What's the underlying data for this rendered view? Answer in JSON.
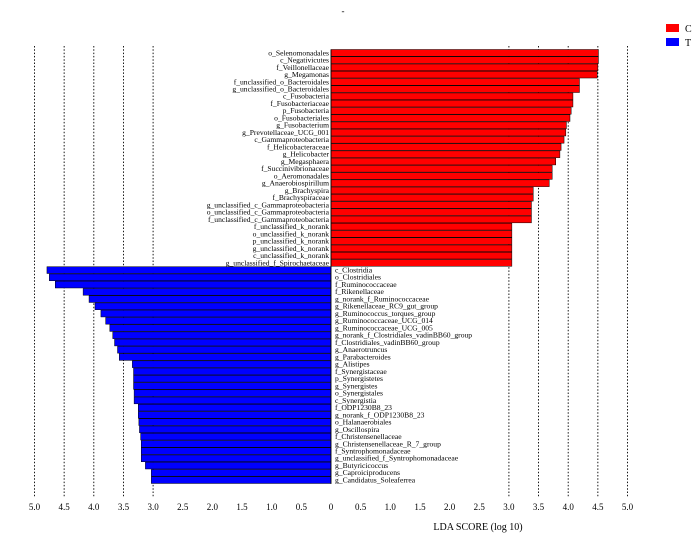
{
  "chart_data": {
    "type": "bar",
    "orientation": "horizontal-diverging",
    "title": "-",
    "xlabel": "LDA SCORE (log 10)",
    "xlim": [
      -5.0,
      5.0
    ],
    "xticks": [
      5.0,
      4.5,
      4.0,
      3.5,
      3.0,
      2.5,
      2.0,
      1.5,
      1.0,
      0.5,
      0.0,
      0.5,
      1.0,
      1.5,
      2.0,
      2.5,
      3.0,
      3.5,
      4.0,
      4.5,
      5.0
    ],
    "xtick_labels": [
      "5.0",
      "4.5",
      "4.0",
      "3.5",
      "3.0",
      "2.5",
      "2.0",
      "1.5",
      "1.0",
      "0.5",
      "0",
      "0.5",
      "1.0",
      "1.5",
      "2.0",
      "2.5",
      "3.0",
      "3.5",
      "4.0",
      "4.5",
      "5.0"
    ],
    "legend": {
      "placement": "top-right",
      "entries": [
        {
          "label": "C",
          "color": "#ff0000"
        },
        {
          "label": "T",
          "color": "#0000ff"
        }
      ]
    },
    "series": [
      {
        "name": "C",
        "color": "#ff0000",
        "direction": "right",
        "categories": [
          "o_Selenomonadales",
          "c_Negativicutes",
          "f_Veillonellaceae",
          "g_Megamonas",
          "f_unclassified_o_Bacteroidales",
          "g_unclassified_o_Bacteroidales",
          "c_Fusobacteria",
          "f_Fusobacteriaceae",
          "p_Fusobacteria",
          "o_Fusobacteriales",
          "g_Fusobacterium",
          "g_Prevotellaceae_UCG_001",
          "c_Gammaproteobacteria",
          "f_Helicobacteraceae",
          "g_Helicobacter",
          "g_Megasphaera",
          "f_Succinivibrionaceae",
          "o_Aeromonadales",
          "g_Anaerobiospirillum",
          "g_Brachyspira",
          "f_Brachyspiraceae",
          "g_unclassified_c_Gammaproteobacteria",
          "o_unclassified_c_Gammaproteobacteria",
          "f_unclassified_c_Gammaproteobacteria",
          "f_unclassified_k_norank",
          "o_unclassified_k_norank",
          "p_unclassified_k_norank",
          "g_unclassified_k_norank",
          "c_unclassified_k_norank",
          "g_unclassified_f_Spirochaetaceae"
        ],
        "values": [
          4.51,
          4.51,
          4.5,
          4.49,
          4.19,
          4.19,
          4.08,
          4.08,
          4.05,
          4.03,
          3.97,
          3.96,
          3.93,
          3.88,
          3.86,
          3.79,
          3.73,
          3.73,
          3.68,
          3.41,
          3.41,
          3.38,
          3.38,
          3.38,
          3.05,
          3.05,
          3.05,
          3.05,
          3.05,
          3.05
        ]
      },
      {
        "name": "T",
        "color": "#0000ff",
        "direction": "left",
        "categories": [
          "c_Clostridia",
          "o_Clostridiales",
          "f_Ruminococcaceae",
          "f_Rikenellaceae",
          "g_norank_f_Ruminococcaceae",
          "g_Rikenellaceae_RC9_gut_group",
          "g_Ruminococcus_torques_group",
          "g_Ruminococcaceae_UCG_014",
          "g_Ruminococcaceae_UCG_005",
          "g_norank_f_Clostridiales_vadinBB60_group",
          "f_Clostridiales_vadinBB60_group",
          "g_Anaerotruncus",
          "g_Parabacteroides",
          "g_Alistipes",
          "f_Synergistaceae",
          "p_Synergistetes",
          "g_Synergistes",
          "o_Synergistales",
          "c_Synergistia",
          "f_ODP1230B8_23",
          "g_norank_f_ODP1230B8_23",
          "o_Halanaerobiales",
          "g_Oscillospira",
          "f_Christensenellaceae",
          "g_Christensenellaceae_R_7_group",
          "f_Syntrophomonadaceae",
          "g_unclassified_f_Syntrophomonadaceae",
          "g_Butyricicoccus",
          "g_Caproiciproducens",
          "g_Candidatus_Soleaferrea"
        ],
        "values": [
          4.79,
          4.75,
          4.65,
          4.18,
          4.08,
          3.98,
          3.88,
          3.8,
          3.73,
          3.68,
          3.65,
          3.6,
          3.57,
          3.35,
          3.33,
          3.33,
          3.33,
          3.32,
          3.32,
          3.25,
          3.25,
          3.24,
          3.23,
          3.21,
          3.2,
          3.2,
          3.2,
          3.13,
          3.03,
          3.03
        ]
      }
    ],
    "grid": false,
    "reference_lines": [
      -5.0,
      -4.5,
      -4.0,
      -3.5,
      -3.0,
      3.0,
      3.5,
      4.0,
      4.5,
      5.0
    ]
  }
}
